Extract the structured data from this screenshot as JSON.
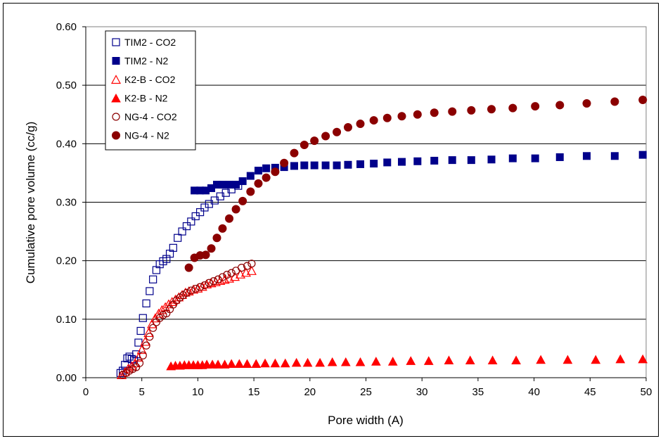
{
  "chart_data": {
    "type": "scatter",
    "title": "",
    "xlabel": "Pore width (A)",
    "ylabel": "Cumulative pore volume (cc/g)",
    "xlim": [
      0,
      50
    ],
    "ylim": [
      0,
      0.6
    ],
    "x_ticks": [
      "0",
      "5",
      "10",
      "15",
      "20",
      "25",
      "30",
      "35",
      "40",
      "45",
      "50"
    ],
    "y_ticks": [
      "0.00",
      "0.10",
      "0.20",
      "0.30",
      "0.40",
      "0.50",
      "0.60"
    ],
    "grid": "horizontal",
    "legend_position": "top-left",
    "series": [
      {
        "name": "TIM2 - CO2",
        "marker": "square-open",
        "color": "#00008B",
        "points": [
          [
            3.1,
            0.008
          ],
          [
            3.3,
            0.012
          ],
          [
            3.5,
            0.022
          ],
          [
            3.7,
            0.033
          ],
          [
            3.9,
            0.036
          ],
          [
            4.1,
            0.032
          ],
          [
            4.3,
            0.03
          ],
          [
            4.5,
            0.04
          ],
          [
            4.7,
            0.06
          ],
          [
            4.9,
            0.08
          ],
          [
            5.1,
            0.102
          ],
          [
            5.4,
            0.127
          ],
          [
            5.7,
            0.148
          ],
          [
            6.0,
            0.168
          ],
          [
            6.3,
            0.184
          ],
          [
            6.6,
            0.194
          ],
          [
            6.9,
            0.199
          ],
          [
            7.2,
            0.203
          ],
          [
            7.5,
            0.212
          ],
          [
            7.8,
            0.222
          ],
          [
            8.2,
            0.239
          ],
          [
            8.6,
            0.25
          ],
          [
            9.0,
            0.259
          ],
          [
            9.4,
            0.267
          ],
          [
            9.8,
            0.276
          ],
          [
            10.2,
            0.283
          ],
          [
            10.6,
            0.291
          ],
          [
            11.0,
            0.297
          ],
          [
            11.5,
            0.303
          ],
          [
            12.0,
            0.31
          ],
          [
            12.5,
            0.316
          ],
          [
            13.0,
            0.322
          ],
          [
            13.6,
            0.328
          ]
        ]
      },
      {
        "name": "TIM2 - N2",
        "marker": "square-filled",
        "color": "#00008B",
        "points": [
          [
            9.7,
            0.32
          ],
          [
            10.2,
            0.32
          ],
          [
            10.7,
            0.32
          ],
          [
            11.2,
            0.324
          ],
          [
            11.7,
            0.33
          ],
          [
            12.2,
            0.33
          ],
          [
            12.8,
            0.33
          ],
          [
            13.4,
            0.33
          ],
          [
            14.0,
            0.336
          ],
          [
            14.7,
            0.345
          ],
          [
            15.4,
            0.354
          ],
          [
            16.1,
            0.358
          ],
          [
            16.9,
            0.359
          ],
          [
            17.7,
            0.36
          ],
          [
            18.6,
            0.362
          ],
          [
            19.5,
            0.363
          ],
          [
            20.4,
            0.363
          ],
          [
            21.4,
            0.363
          ],
          [
            22.4,
            0.363
          ],
          [
            23.4,
            0.364
          ],
          [
            24.5,
            0.365
          ],
          [
            25.7,
            0.366
          ],
          [
            26.9,
            0.368
          ],
          [
            28.2,
            0.369
          ],
          [
            29.6,
            0.37
          ],
          [
            31.1,
            0.371
          ],
          [
            32.7,
            0.372
          ],
          [
            34.4,
            0.372
          ],
          [
            36.2,
            0.373
          ],
          [
            38.1,
            0.375
          ],
          [
            40.1,
            0.375
          ],
          [
            42.3,
            0.377
          ],
          [
            44.7,
            0.379
          ],
          [
            47.2,
            0.379
          ],
          [
            49.7,
            0.381
          ]
        ]
      },
      {
        "name": "K2-B - CO2",
        "marker": "triangle-open",
        "color": "#FF0000",
        "points": [
          [
            3.2,
            0.005
          ],
          [
            3.5,
            0.01
          ],
          [
            3.8,
            0.016
          ],
          [
            4.1,
            0.02
          ],
          [
            4.4,
            0.025
          ],
          [
            4.7,
            0.035
          ],
          [
            5.0,
            0.048
          ],
          [
            5.3,
            0.062
          ],
          [
            5.6,
            0.077
          ],
          [
            5.9,
            0.092
          ],
          [
            6.2,
            0.102
          ],
          [
            6.5,
            0.11
          ],
          [
            6.8,
            0.116
          ],
          [
            7.1,
            0.121
          ],
          [
            7.4,
            0.126
          ],
          [
            7.7,
            0.13
          ],
          [
            8.0,
            0.134
          ],
          [
            8.3,
            0.138
          ],
          [
            8.6,
            0.142
          ],
          [
            8.9,
            0.146
          ],
          [
            9.2,
            0.148
          ],
          [
            9.6,
            0.151
          ],
          [
            10.0,
            0.153
          ],
          [
            10.4,
            0.156
          ],
          [
            10.8,
            0.16
          ],
          [
            11.2,
            0.162
          ],
          [
            11.6,
            0.164
          ],
          [
            12.0,
            0.166
          ],
          [
            12.4,
            0.168
          ],
          [
            12.8,
            0.17
          ],
          [
            13.3,
            0.173
          ],
          [
            13.8,
            0.177
          ],
          [
            14.3,
            0.18
          ],
          [
            14.8,
            0.183
          ]
        ]
      },
      {
        "name": "K2-B - N2",
        "marker": "triangle-filled",
        "color": "#FF0000",
        "points": [
          [
            7.6,
            0.02
          ],
          [
            8.0,
            0.021
          ],
          [
            8.4,
            0.021
          ],
          [
            8.8,
            0.022
          ],
          [
            9.2,
            0.022
          ],
          [
            9.6,
            0.022
          ],
          [
            10.0,
            0.022
          ],
          [
            10.4,
            0.022
          ],
          [
            10.8,
            0.023
          ],
          [
            11.3,
            0.023
          ],
          [
            11.8,
            0.023
          ],
          [
            12.4,
            0.023
          ],
          [
            13.0,
            0.024
          ],
          [
            13.7,
            0.024
          ],
          [
            14.4,
            0.024
          ],
          [
            15.2,
            0.024
          ],
          [
            16.0,
            0.025
          ],
          [
            16.9,
            0.025
          ],
          [
            17.8,
            0.025
          ],
          [
            18.8,
            0.026
          ],
          [
            19.8,
            0.026
          ],
          [
            20.9,
            0.026
          ],
          [
            22.0,
            0.027
          ],
          [
            23.2,
            0.027
          ],
          [
            24.5,
            0.027
          ],
          [
            25.9,
            0.028
          ],
          [
            27.4,
            0.028
          ],
          [
            29.0,
            0.029
          ],
          [
            30.6,
            0.029
          ],
          [
            32.4,
            0.03
          ],
          [
            34.3,
            0.03
          ],
          [
            36.3,
            0.03
          ],
          [
            38.4,
            0.03
          ],
          [
            40.6,
            0.031
          ],
          [
            43.0,
            0.031
          ],
          [
            45.5,
            0.031
          ],
          [
            47.7,
            0.032
          ],
          [
            49.7,
            0.032
          ]
        ]
      },
      {
        "name": "NG-4 - CO2",
        "marker": "circle-open",
        "color": "#8B0000",
        "points": [
          [
            3.3,
            0.005
          ],
          [
            3.6,
            0.008
          ],
          [
            3.9,
            0.012
          ],
          [
            4.2,
            0.015
          ],
          [
            4.5,
            0.018
          ],
          [
            4.8,
            0.025
          ],
          [
            5.1,
            0.038
          ],
          [
            5.4,
            0.055
          ],
          [
            5.7,
            0.07
          ],
          [
            6.0,
            0.085
          ],
          [
            6.3,
            0.095
          ],
          [
            6.6,
            0.102
          ],
          [
            6.9,
            0.107
          ],
          [
            7.2,
            0.11
          ],
          [
            7.5,
            0.117
          ],
          [
            7.8,
            0.125
          ],
          [
            8.1,
            0.132
          ],
          [
            8.4,
            0.137
          ],
          [
            8.7,
            0.141
          ],
          [
            9.0,
            0.145
          ],
          [
            9.4,
            0.149
          ],
          [
            9.8,
            0.152
          ],
          [
            10.2,
            0.155
          ],
          [
            10.6,
            0.158
          ],
          [
            11.0,
            0.162
          ],
          [
            11.4,
            0.165
          ],
          [
            11.8,
            0.168
          ],
          [
            12.2,
            0.172
          ],
          [
            12.6,
            0.176
          ],
          [
            13.0,
            0.179
          ],
          [
            13.4,
            0.183
          ],
          [
            13.9,
            0.188
          ],
          [
            14.4,
            0.191
          ],
          [
            14.8,
            0.195
          ]
        ]
      },
      {
        "name": "NG-4 - N2",
        "marker": "circle-filled",
        "color": "#8B0000",
        "points": [
          [
            9.2,
            0.188
          ],
          [
            9.7,
            0.205
          ],
          [
            10.2,
            0.209
          ],
          [
            10.7,
            0.21
          ],
          [
            11.2,
            0.221
          ],
          [
            11.7,
            0.239
          ],
          [
            12.2,
            0.255
          ],
          [
            12.8,
            0.272
          ],
          [
            13.4,
            0.288
          ],
          [
            14.0,
            0.302
          ],
          [
            14.7,
            0.318
          ],
          [
            15.4,
            0.332
          ],
          [
            16.1,
            0.342
          ],
          [
            16.9,
            0.352
          ],
          [
            17.7,
            0.367
          ],
          [
            18.6,
            0.384
          ],
          [
            19.5,
            0.398
          ],
          [
            20.4,
            0.405
          ],
          [
            21.4,
            0.413
          ],
          [
            22.4,
            0.42
          ],
          [
            23.4,
            0.428
          ],
          [
            24.5,
            0.434
          ],
          [
            25.7,
            0.44
          ],
          [
            26.9,
            0.444
          ],
          [
            28.2,
            0.447
          ],
          [
            29.6,
            0.45
          ],
          [
            31.1,
            0.453
          ],
          [
            32.7,
            0.455
          ],
          [
            34.4,
            0.457
          ],
          [
            36.2,
            0.459
          ],
          [
            38.1,
            0.461
          ],
          [
            40.1,
            0.464
          ],
          [
            42.3,
            0.466
          ],
          [
            44.7,
            0.469
          ],
          [
            47.2,
            0.472
          ],
          [
            49.7,
            0.475
          ]
        ]
      }
    ]
  }
}
